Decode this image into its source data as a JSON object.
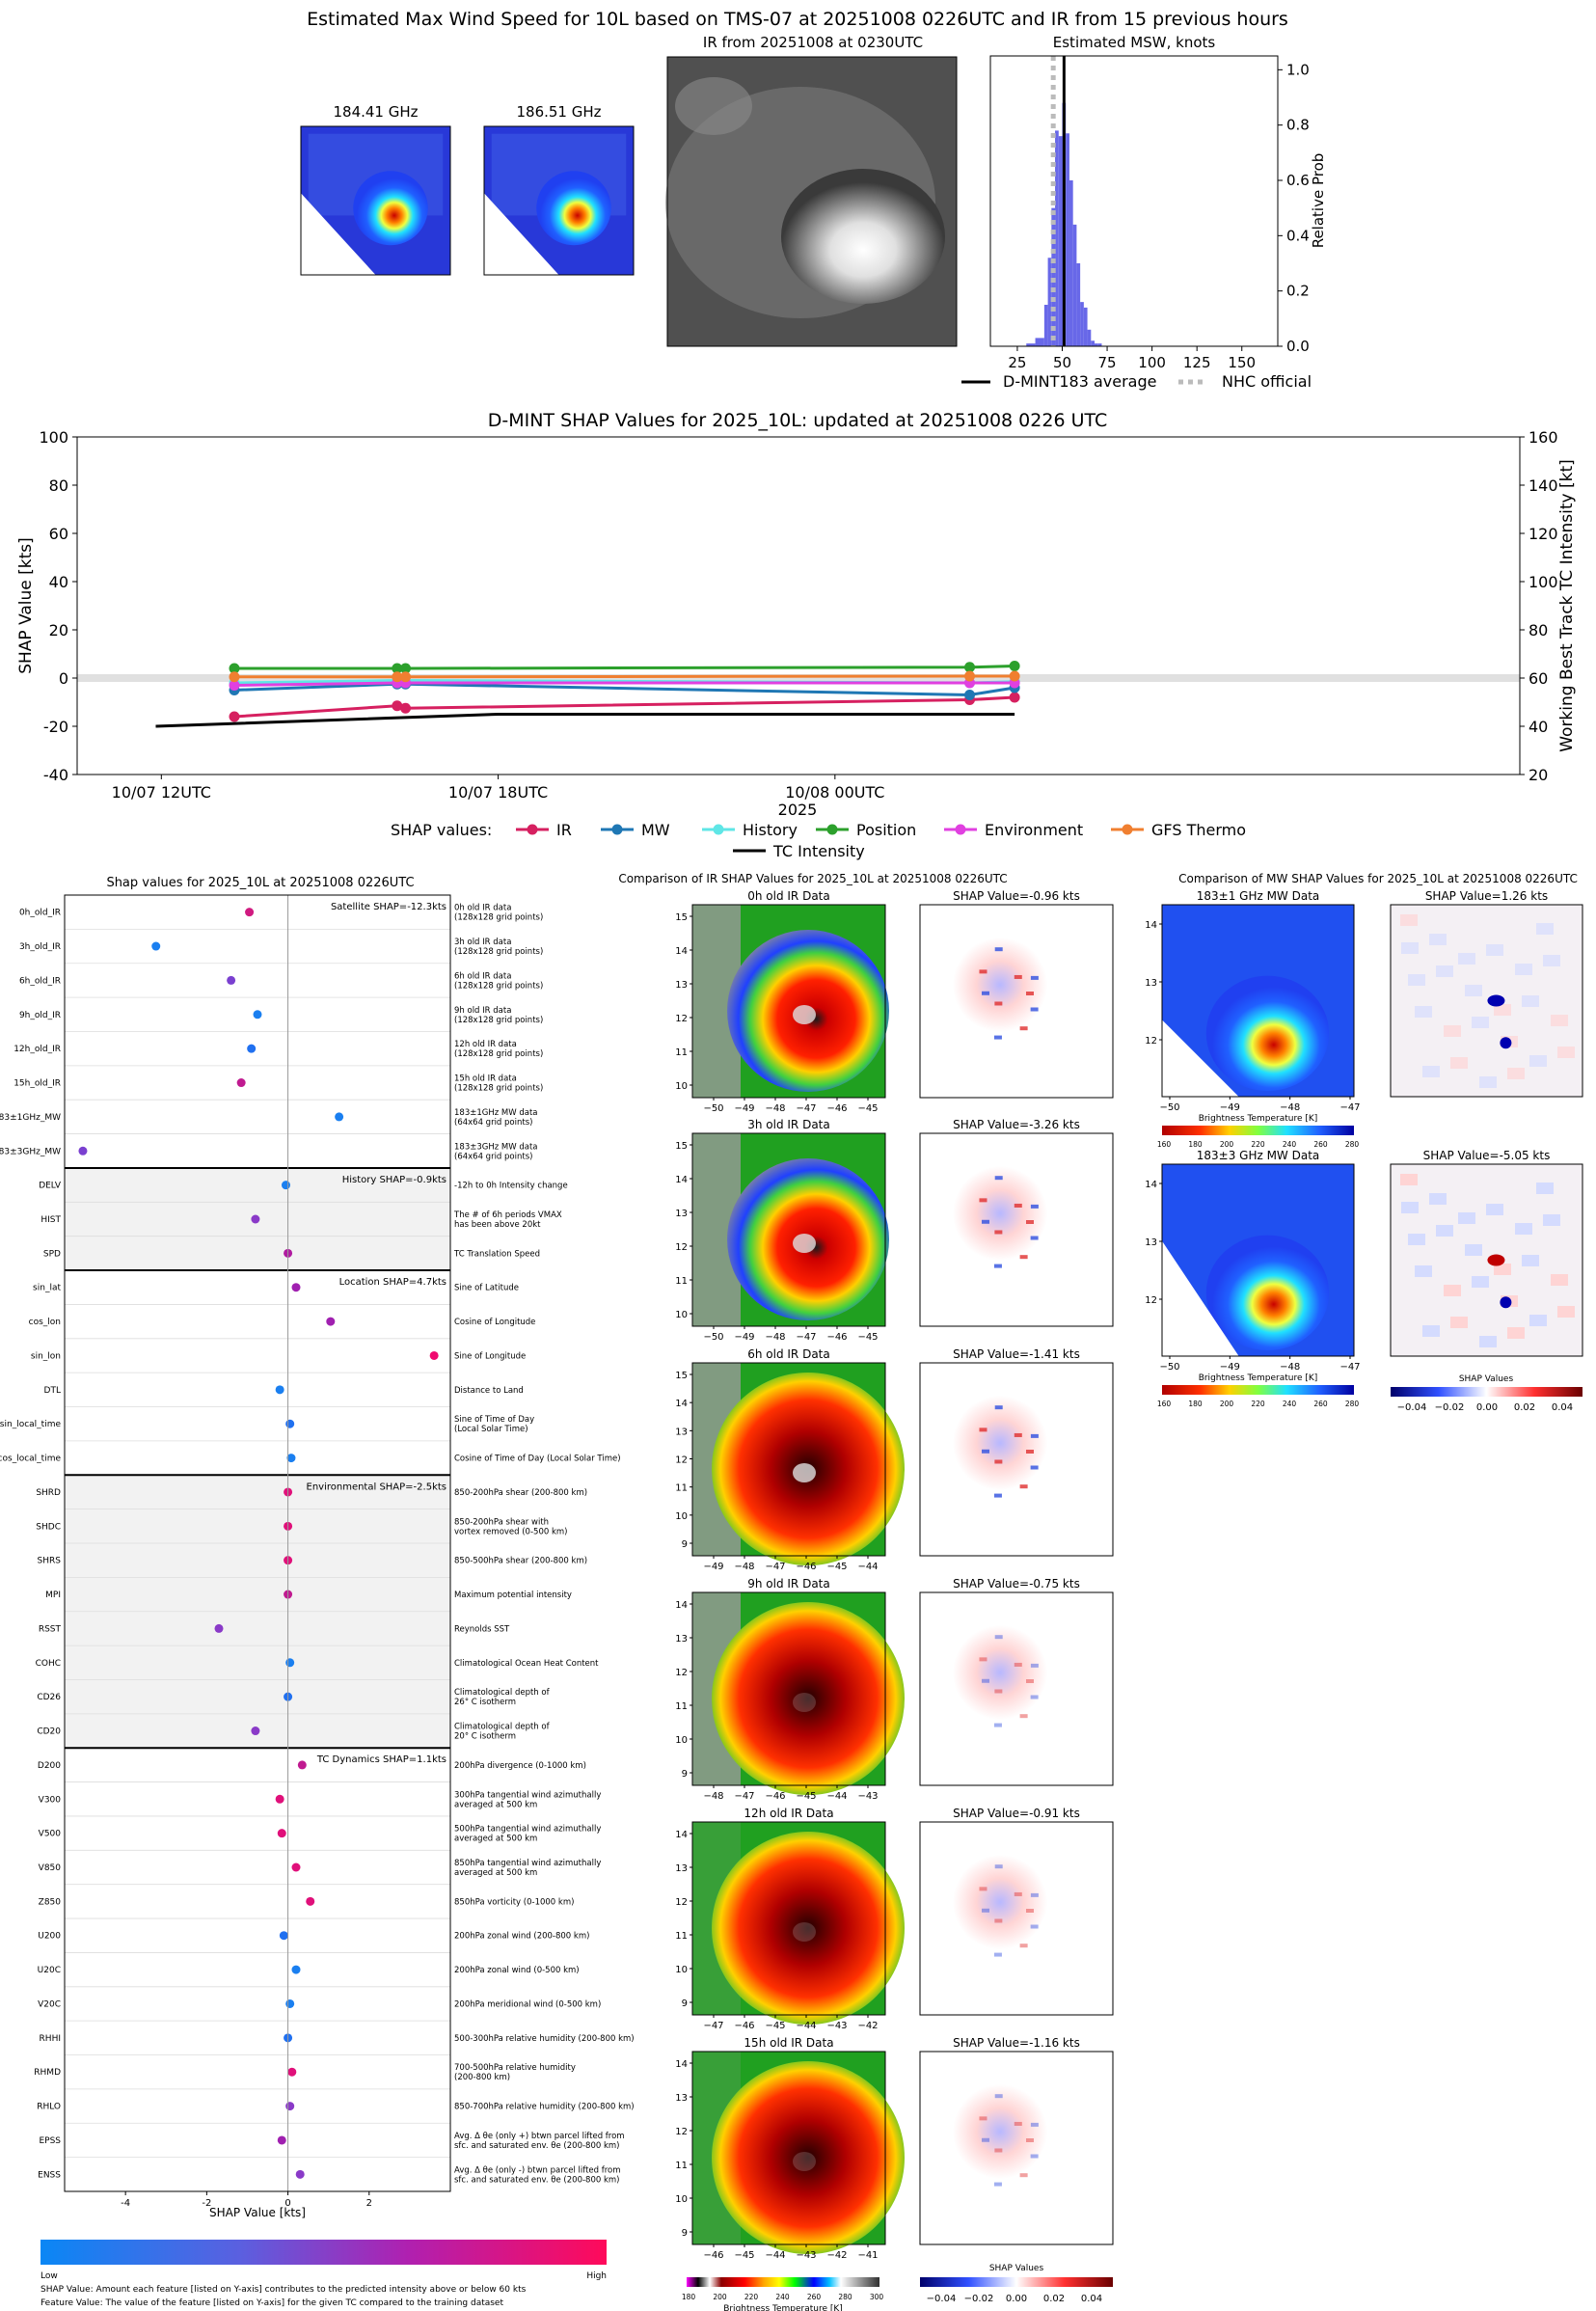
{
  "header": {
    "title": "Estimated Max Wind Speed for 10L based on TMS-07 at 20251008 0226UTC and IR from 15 previous hours",
    "mw1_title": "184.41 GHz",
    "mw2_title": "186.51 GHz",
    "ir_title": "IR from 20251008 at 0230UTC",
    "hist_title": "Estimated MSW, knots",
    "hist_ylabel": "Relative Prob",
    "legend_avg": "D-MINT183 average",
    "legend_nhc": "NHC official"
  },
  "shap_ts": {
    "title": "D-MINT SHAP Values for 2025_10L: updated at 20251008 0226 UTC",
    "ylabel": "SHAP Value [kts]",
    "y2label": "Working Best Track TC Intensity [kt]",
    "xlabel": "2025",
    "legend_title": "SHAP values:",
    "legend_tc": "TC Intensity"
  },
  "features": {
    "title": "Shap values for 2025_10L at 20251008 0226UTC",
    "xlabel": "SHAP Value [kts]",
    "footnote1": "SHAP Value: Amount each feature [listed on Y-axis] contributes to the predicted intensity above or below 60 kts",
    "footnote2": "Feature Value: The value of the feature [listed on Y-axis] for the given TC compared to the training dataset",
    "colorbar_low": "Low",
    "colorbar_high": "High"
  },
  "ir_panels": {
    "title": "Comparison of IR SHAP Values for 2025_10L at 20251008 0226UTC",
    "colorbar_label": "Brightness Temperature [K]",
    "shap_colorbar_label": "SHAP Values"
  },
  "mw_panels": {
    "title": "Comparison of MW SHAP Values for 2025_10L at 20251008 0226UTC",
    "colorbar_label": "Brightness Temperature [K]",
    "shap_colorbar_label": "SHAP Values"
  },
  "colors": {
    "IR": "#d62060",
    "MW": "#1f77b4",
    "History": "#5fe6e6",
    "Position": "#2ca02c",
    "Environment": "#e040e0",
    "GFS Thermo": "#f07f30",
    "TC": "#000000"
  },
  "chart_data": [
    {
      "id": "msw_hist",
      "type": "bar",
      "title": "Estimated MSW, knots",
      "ylabel": "Relative Prob",
      "xlim": [
        10,
        170
      ],
      "ylim": [
        0,
        1.05
      ],
      "xticks": [
        25,
        50,
        75,
        100,
        125,
        150
      ],
      "yticks": [
        0.0,
        0.2,
        0.4,
        0.6,
        0.8,
        1.0
      ],
      "bins": [
        30,
        35,
        40,
        42,
        44,
        46,
        48,
        50,
        52,
        54,
        56,
        58,
        60,
        62,
        64,
        66,
        68,
        70
      ],
      "values": [
        0.01,
        0.03,
        0.15,
        0.32,
        0.5,
        0.78,
        0.76,
        0.88,
        0.77,
        0.6,
        0.44,
        0.3,
        0.16,
        0.14,
        0.06,
        0.02,
        0.01,
        0.01
      ],
      "average": 51,
      "nhc_official": 45
    },
    {
      "id": "shap_timeseries",
      "type": "line",
      "xlabel": "2025",
      "ylabel": "SHAP Value [kts]",
      "y2label": "Working Best Track TC Intensity [kt]",
      "ylim": [
        -40,
        100
      ],
      "y2lim": [
        20,
        160
      ],
      "yticks": [
        -40,
        -20,
        0,
        20,
        40,
        60,
        80,
        100
      ],
      "y2ticks": [
        20,
        40,
        60,
        80,
        100,
        120,
        140,
        160
      ],
      "xlim_hours": [
        -1.5,
        24.2
      ],
      "xticks": [
        {
          "h": 0,
          "label": "10/07 12UTC"
        },
        {
          "h": 6,
          "label": "10/07 18UTC"
        },
        {
          "h": 12,
          "label": "10/08 00UTC"
        }
      ],
      "x_hours": [
        1.3,
        4.2,
        4.35,
        14.4,
        15.2
      ],
      "series": [
        {
          "name": "IR",
          "values": [
            -16,
            -11.5,
            -12.5,
            -9,
            -8
          ]
        },
        {
          "name": "MW",
          "values": [
            -5,
            -2.5,
            -2.5,
            -7,
            -4
          ]
        },
        {
          "name": "History",
          "values": [
            -2,
            -1,
            -1,
            -2,
            -1.5
          ]
        },
        {
          "name": "Position",
          "values": [
            4,
            4,
            4,
            4.5,
            5
          ]
        },
        {
          "name": "Environment",
          "values": [
            -3,
            -2,
            -2,
            -2,
            -2
          ]
        },
        {
          "name": "GFS Thermo",
          "values": [
            0.5,
            0.5,
            0.5,
            0.8,
            0.8
          ]
        }
      ],
      "tc_intensity": {
        "name": "TC Intensity",
        "x_hours": [
          -0.1,
          6,
          12,
          15.2
        ],
        "values": [
          40,
          45,
          45,
          45
        ]
      }
    },
    {
      "id": "feature_shap",
      "type": "scatter",
      "title": "Shap values for 2025_10L at 20251008 0226UTC",
      "xlabel": "SHAP Value [kts]",
      "xlim": [
        -5.5,
        4
      ],
      "xticks": [
        -4,
        -2,
        0,
        2
      ],
      "groups": [
        {
          "label": "Satellite SHAP=-12.3kts",
          "rows": [
            {
              "name": "0h_old_IR",
              "desc": "0h old IR data\n(128x128 grid points)",
              "shap": -0.95,
              "color": "#d01a80"
            },
            {
              "name": "3h_old_IR",
              "desc": "3h old IR data\n(128x128 grid points)",
              "shap": -3.25,
              "color": "#1a7ff0"
            },
            {
              "name": "6h_old_IR",
              "desc": "6h old IR data\n(128x128 grid points)",
              "shap": -1.4,
              "color": "#7a40d0"
            },
            {
              "name": "9h_old_IR",
              "desc": "9h old IR data\n(128x128 grid points)",
              "shap": -0.75,
              "color": "#1a7ff0"
            },
            {
              "name": "12h_old_IR",
              "desc": "12h old IR data\n(128x128 grid points)",
              "shap": -0.9,
              "color": "#2070f0"
            },
            {
              "name": "15h_old_IR",
              "desc": "15h old IR data\n(128x128 grid points)",
              "shap": -1.15,
              "color": "#c01a90"
            },
            {
              "name": "183±1GHz_MW",
              "desc": "183±1GHz MW data\n(64x64 grid points)",
              "shap": 1.26,
              "color": "#1a7ff0"
            },
            {
              "name": "183±3GHz_MW",
              "desc": "183±3GHz MW data\n(64x64 grid points)",
              "shap": -5.05,
              "color": "#7a40d0"
            }
          ]
        },
        {
          "label": "History SHAP=-0.9kts",
          "rows": [
            {
              "name": "DELV",
              "desc": "-12h to 0h Intensity change",
              "shap": -0.05,
              "color": "#1a7ff0"
            },
            {
              "name": "HIST",
              "desc": "The # of 6h periods VMAX\nhas been above 20kt",
              "shap": -0.8,
              "color": "#8a3ac8"
            },
            {
              "name": "SPD",
              "desc": "TC Translation Speed",
              "shap": 0.0,
              "color": "#b01aa0"
            }
          ]
        },
        {
          "label": "Location SHAP=4.7kts",
          "rows": [
            {
              "name": "sin_lat",
              "desc": "Sine of Latitude",
              "shap": 0.2,
              "color": "#a020b0"
            },
            {
              "name": "cos_lon",
              "desc": "Cosine of Longitude",
              "shap": 1.05,
              "color": "#a020b0"
            },
            {
              "name": "sin_lon",
              "desc": "Sine of Longitude",
              "shap": 3.6,
              "color": "#f00a70"
            },
            {
              "name": "DTL",
              "desc": "Distance to Land",
              "shap": -0.2,
              "color": "#1a7ff0"
            },
            {
              "name": "sin_local_time",
              "desc": "Sine of Time of Day\n(Local Solar Time)",
              "shap": 0.05,
              "color": "#2070f0"
            },
            {
              "name": "cos_local_time",
              "desc": "Cosine of Time of Day (Local Solar Time)",
              "shap": 0.08,
              "color": "#1a7ff0"
            }
          ]
        },
        {
          "label": "Environmental SHAP=-2.5kts",
          "rows": [
            {
              "name": "SHRD",
              "desc": "850-200hPa shear (200-800 km)",
              "shap": 0.0,
              "color": "#e0107a"
            },
            {
              "name": "SHDC",
              "desc": "850-200hPa shear with\nvortex removed (0-500 km)",
              "shap": 0.0,
              "color": "#e0107a"
            },
            {
              "name": "SHRS",
              "desc": "850-500hPa shear (200-800 km)",
              "shap": 0.0,
              "color": "#e0107a"
            },
            {
              "name": "MPI",
              "desc": "Maximum potential intensity",
              "shap": 0.0,
              "color": "#c01a90"
            },
            {
              "name": "RSST",
              "desc": "Reynolds SST",
              "shap": -1.7,
              "color": "#8a3ac8"
            },
            {
              "name": "COHC",
              "desc": "Climatological Ocean Heat Content",
              "shap": 0.05,
              "color": "#1a7ff0"
            },
            {
              "name": "CD26",
              "desc": "Climatological depth of\n26° C isotherm",
              "shap": 0.0,
              "color": "#2070f0"
            },
            {
              "name": "CD20",
              "desc": "Climatological depth of\n20° C isotherm",
              "shap": -0.8,
              "color": "#8a3ac8"
            }
          ]
        },
        {
          "label": "TC Dynamics SHAP=1.1kts",
          "rows": [
            {
              "name": "D200",
              "desc": "200hPa divergence (0-1000 km)",
              "shap": 0.35,
              "color": "#c01a90"
            },
            {
              "name": "V300",
              "desc": "300hPa tangential wind azimuthally\naveraged at 500 km",
              "shap": -0.2,
              "color": "#e0107a"
            },
            {
              "name": "V500",
              "desc": "500hPa tangential wind azimuthally\naveraged at 500 km",
              "shap": -0.15,
              "color": "#e0107a"
            },
            {
              "name": "V850",
              "desc": "850hPa tangential wind azimuthally\naveraged at 500 km",
              "shap": 0.2,
              "color": "#e0107a"
            },
            {
              "name": "Z850",
              "desc": "850hPa vorticity (0-1000 km)",
              "shap": 0.55,
              "color": "#e0107a"
            },
            {
              "name": "U200",
              "desc": "200hPa zonal wind (200-800 km)",
              "shap": -0.1,
              "color": "#2070f0"
            },
            {
              "name": "U20C",
              "desc": "200hPa zonal wind (0-500 km)",
              "shap": 0.2,
              "color": "#1a7ff0"
            },
            {
              "name": "V20C",
              "desc": "200hPa meridional wind (0-500 km)",
              "shap": 0.05,
              "color": "#1a7ff0"
            },
            {
              "name": "RHHI",
              "desc": "500-300hPa relative humidity (200-800 km)",
              "shap": 0.0,
              "color": "#2070f0"
            },
            {
              "name": "RHMD",
              "desc": "700-500hPa relative humidity\n(200-800 km)",
              "shap": 0.1,
              "color": "#e0107a"
            },
            {
              "name": "RHLO",
              "desc": "850-700hPa relative humidity (200-800 km)",
              "shap": 0.05,
              "color": "#8a3ac8"
            },
            {
              "name": "EPSS",
              "desc": "Avg. Δ θe (only +) btwn parcel lifted from\nsfc. and saturated env. θe (200-800 km)",
              "shap": -0.15,
              "color": "#a020b0"
            },
            {
              "name": "ENSS",
              "desc": "Avg. Δ θe (only -) btwn parcel lifted from\nsfc. and saturated env. θe (200-800 km)",
              "shap": 0.3,
              "color": "#8a3ac8"
            }
          ]
        }
      ]
    },
    {
      "id": "ir_comparison",
      "type": "heatmap",
      "panels": [
        {
          "title": "0h old IR Data",
          "shap_title": "SHAP Value=-0.96 kts",
          "xticks": [
            "−50",
            "−49",
            "−48",
            "−47",
            "−46",
            "−45"
          ],
          "yticks": [
            "15",
            "14",
            "13",
            "12",
            "11",
            "10"
          ]
        },
        {
          "title": "3h old IR Data",
          "shap_title": "SHAP Value=-3.26 kts",
          "xticks": [
            "−50",
            "−49",
            "−48",
            "−47",
            "−46",
            "−45"
          ],
          "yticks": [
            "15",
            "14",
            "13",
            "12",
            "11",
            "10"
          ]
        },
        {
          "title": "6h old IR Data",
          "shap_title": "SHAP Value=-1.41 kts",
          "xticks": [
            "−49",
            "−48",
            "−47",
            "−46",
            "−45",
            "−44"
          ],
          "yticks": [
            "15",
            "14",
            "13",
            "12",
            "11",
            "10",
            "9"
          ]
        },
        {
          "title": "9h old IR Data",
          "shap_title": "SHAP Value=-0.75 kts",
          "xticks": [
            "−48",
            "−47",
            "−46",
            "−45",
            "−44",
            "−43"
          ],
          "yticks": [
            "14",
            "13",
            "12",
            "11",
            "10",
            "9"
          ]
        },
        {
          "title": "12h old IR Data",
          "shap_title": "SHAP Value=-0.91 kts",
          "xticks": [
            "−47",
            "−46",
            "−45",
            "−44",
            "−43",
            "−42"
          ],
          "yticks": [
            "14",
            "13",
            "12",
            "11",
            "10",
            "9"
          ]
        },
        {
          "title": "15h old IR Data",
          "shap_title": "SHAP Value=-1.16 kts",
          "xticks": [
            "−46",
            "−45",
            "−44",
            "−43",
            "−42",
            "−41"
          ],
          "yticks": [
            "14",
            "13",
            "12",
            "11",
            "10",
            "9"
          ]
        }
      ],
      "colorbar_ticks": [
        "180",
        "200",
        "220",
        "240",
        "260",
        "280",
        "300"
      ],
      "shap_colorbar_ticks": [
        "−0.04",
        "−0.02",
        "0.00",
        "0.02",
        "0.04"
      ]
    },
    {
      "id": "mw_comparison",
      "type": "heatmap",
      "panels": [
        {
          "title": "183±1 GHz MW Data",
          "shap_title": "SHAP Value=1.26 kts",
          "xticks": [
            "−50",
            "−49",
            "−48",
            "−47"
          ],
          "yticks": [
            "14",
            "13",
            "12"
          ]
        },
        {
          "title": "183±3 GHz MW Data",
          "shap_title": "SHAP Value=-5.05 kts",
          "xticks": [
            "−50",
            "−49",
            "−48",
            "−47"
          ],
          "yticks": [
            "14",
            "13",
            "12"
          ]
        }
      ],
      "colorbar_ticks": [
        "160",
        "180",
        "200",
        "220",
        "240",
        "260",
        "280"
      ],
      "shap_colorbar_ticks": [
        "−0.04",
        "−0.02",
        "0.00",
        "0.02",
        "0.04"
      ]
    }
  ]
}
